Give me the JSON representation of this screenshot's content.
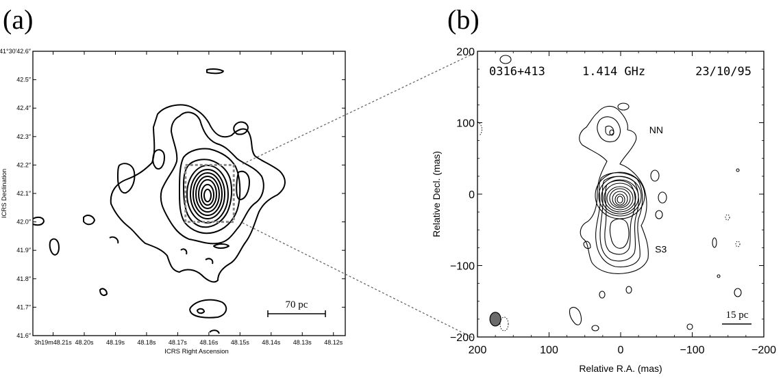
{
  "chart_data": [
    {
      "type": "contour",
      "panel_label": "(a)",
      "xlabel": "ICRS Right Ascension",
      "ylabel": "ICRS Declination",
      "x_ticks": [
        "3h19m48.21s",
        "48.20s",
        "48.19s",
        "48.18s",
        "48.17s",
        "48.16s",
        "48.15s",
        "48.14s",
        "48.13s",
        "48.12s"
      ],
      "x_tick_values": [
        48.21,
        48.2,
        48.19,
        48.18,
        48.17,
        48.16,
        48.15,
        48.14,
        48.13,
        48.12
      ],
      "xlim": [
        48.2165,
        48.1162
      ],
      "y_ticks": [
        "41°30′42.6″",
        "42.5″",
        "42.4″",
        "42.3″",
        "42.2″",
        "42.1″",
        "42.0″",
        "41.9″",
        "41.8″",
        "41.7″",
        "41.6″"
      ],
      "y_tick_values": [
        42.6,
        42.5,
        42.4,
        42.3,
        42.2,
        42.1,
        42.0,
        41.9,
        41.8,
        41.7,
        41.6
      ],
      "ylim": [
        41.6,
        42.6
      ],
      "core_center": [
        48.1615,
        42.09
      ],
      "zoom_box": {
        "ra": [
          48.1675,
          48.152
        ],
        "dec": [
          42.0,
          42.2
        ]
      },
      "scale_bar_label": "70 pc",
      "grid": false
    },
    {
      "type": "contour",
      "panel_label": "(b)",
      "source": "0316+413",
      "frequency": "1.414 GHz",
      "date": "23/10/95",
      "xlabel": "Relative R.A. (mas)",
      "ylabel": "Relative Decl. (mas)",
      "x_ticks": [
        "200",
        "100",
        "0",
        "−100",
        "−200"
      ],
      "x_tick_values": [
        200,
        100,
        0,
        -100,
        -200
      ],
      "xlim": [
        200,
        -200
      ],
      "y_ticks": [
        "200",
        "100",
        "0",
        "−100",
        "−200"
      ],
      "y_tick_values": [
        200,
        100,
        0,
        -100,
        -200
      ],
      "ylim": [
        -200,
        200
      ],
      "core_center": [
        0,
        -10
      ],
      "labels": [
        {
          "text": "NN",
          "x": -40,
          "y": 85
        },
        {
          "text": "S3",
          "x": -48,
          "y": -82
        }
      ],
      "beam": {
        "x": 175,
        "y": -175
      },
      "scale_bar_label": "15 pc",
      "grid": false
    }
  ]
}
